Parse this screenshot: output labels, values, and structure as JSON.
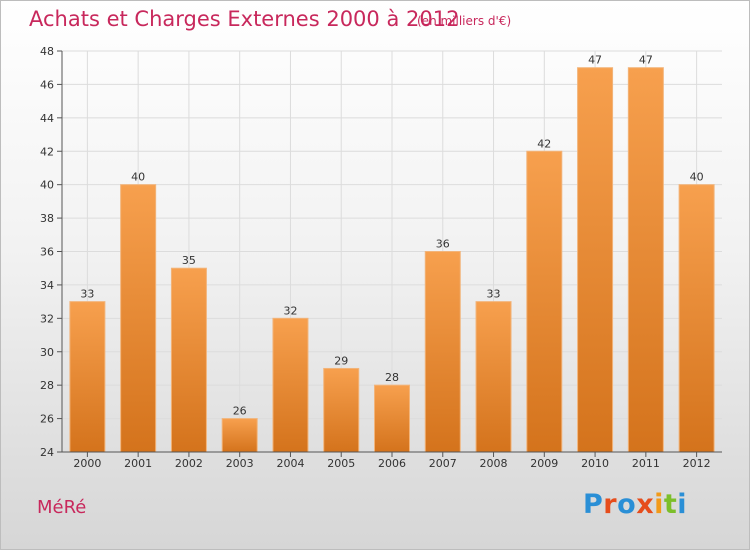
{
  "header": {
    "title": "Achats et Charges Externes 2000 à 2012",
    "subtitle": "(en milliers d'€)"
  },
  "footer": {
    "commune": "MéRé",
    "logo_text": "Proxiti"
  },
  "colors": {
    "title": "#c8285c",
    "bar_top": "#f7a04e",
    "bar_bottom": "#d4731c",
    "grid": "#dcdcdc",
    "axis": "#555555"
  },
  "chart_data": {
    "type": "bar",
    "categories": [
      "2000",
      "2001",
      "2002",
      "2003",
      "2004",
      "2005",
      "2006",
      "2007",
      "2008",
      "2009",
      "2010",
      "2011",
      "2012"
    ],
    "values": [
      33,
      40,
      35,
      26,
      32,
      29,
      28,
      36,
      33,
      42,
      47,
      47,
      40
    ],
    "title": "Achats et Charges Externes 2000 à 2012",
    "subtitle": "(en milliers d'€)",
    "xlabel": "",
    "ylabel": "",
    "ylim": [
      24,
      48
    ],
    "yticks": [
      24,
      26,
      28,
      30,
      32,
      34,
      36,
      38,
      40,
      42,
      44,
      46,
      48
    ],
    "grid": true,
    "data_labels": true
  }
}
